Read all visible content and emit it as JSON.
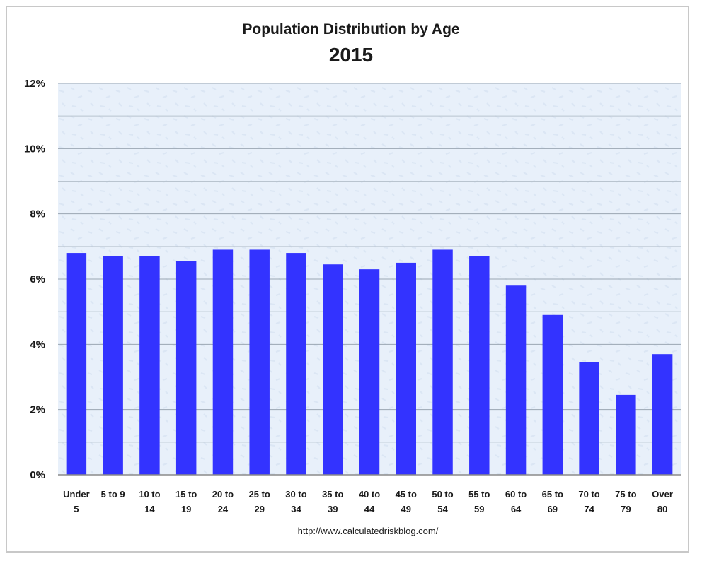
{
  "chart_data": {
    "type": "bar",
    "title": "Population Distribution by Age",
    "subtitle": "2015",
    "xlabel": "",
    "ylabel": "",
    "ylim": [
      0,
      12
    ],
    "yticks": [
      "0%",
      "2%",
      "4%",
      "6%",
      "8%",
      "10%",
      "12%"
    ],
    "categories": [
      [
        "Under",
        "5"
      ],
      [
        "5 to 9",
        ""
      ],
      [
        "10 to",
        "14"
      ],
      [
        "15 to",
        "19"
      ],
      [
        "20 to",
        "24"
      ],
      [
        "25 to",
        "29"
      ],
      [
        "30 to",
        "34"
      ],
      [
        "35 to",
        "39"
      ],
      [
        "40 to",
        "44"
      ],
      [
        "45 to",
        "49"
      ],
      [
        "50 to",
        "54"
      ],
      [
        "55 to",
        "59"
      ],
      [
        "60 to",
        "64"
      ],
      [
        "65 to",
        "69"
      ],
      [
        "70 to",
        "74"
      ],
      [
        "75 to",
        "79"
      ],
      [
        "Over",
        "80"
      ]
    ],
    "values": [
      6.8,
      6.7,
      6.7,
      6.55,
      6.9,
      6.9,
      6.8,
      6.45,
      6.3,
      6.5,
      6.9,
      6.7,
      5.8,
      4.9,
      3.45,
      2.45,
      3.7
    ],
    "bar_color": "#3333ff",
    "plot_background": "#e9f1fa",
    "grid": true,
    "source": "http://www.calculatedriskblog.com/"
  }
}
